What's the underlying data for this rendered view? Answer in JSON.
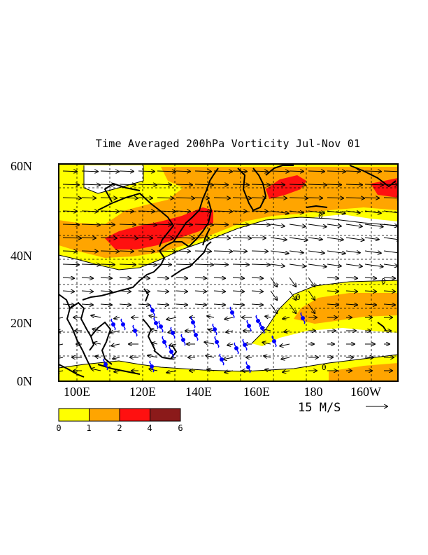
{
  "title": "Time Averaged 200hPa Vorticity Jul-Nov 01",
  "lat_labels": [
    "60N",
    "40N",
    "20N",
    "0N"
  ],
  "lon_labels": [
    "100E",
    "120E",
    "140E",
    "160E",
    "180",
    "160W"
  ],
  "reference_vector": "15 M/S",
  "colorbar": {
    "labels": [
      "0",
      "1",
      "2",
      "4",
      "6"
    ],
    "colors": [
      "#ffff00",
      "#ffa500",
      "#ff1010",
      "#8b1a1a"
    ]
  },
  "contour_labels": [
    "0",
    "0",
    "0",
    "0"
  ],
  "colors": {
    "land_outline": "#000000",
    "typhoon_symbol": "#0000ff",
    "shade_low": "#ffff00",
    "shade_mid": "#ffa500",
    "shade_high": "#ff1010"
  },
  "icons": {
    "storm": "typhoon-symbol-icon",
    "arrow": "wind-vector-icon"
  }
}
